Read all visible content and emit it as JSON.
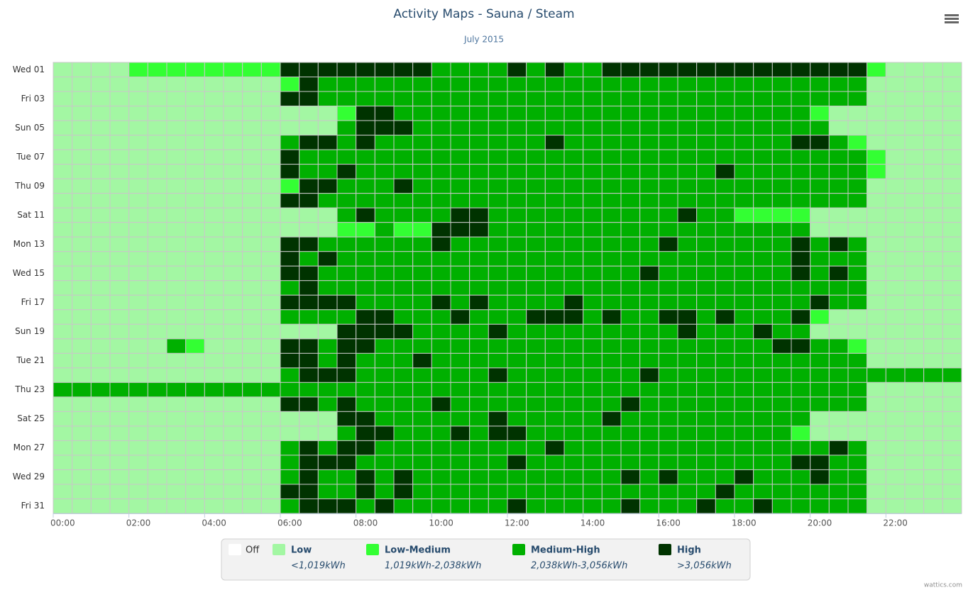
{
  "chart_data": {
    "type": "heatmap",
    "title": "Activity Maps - Sauna / Steam",
    "subtitle": "July 2015",
    "credit": "wattics.com",
    "legend": [
      {
        "name": "Off",
        "color": "#ffffff"
      },
      {
        "name": "Low",
        "range": "<1,019kWh",
        "color": "#a3f7a3"
      },
      {
        "name": "Low-Medium",
        "range": "1,019kWh-2,038kWh",
        "color": "#33ff33"
      },
      {
        "name": "Medium-High",
        "range": "2,038kWh-3,056kWh",
        "color": "#00b000"
      },
      {
        "name": "High",
        "range": ">3,056kWh",
        "color": "#003300"
      }
    ],
    "categories": [
      "00:00",
      null,
      null,
      null,
      "02:00",
      null,
      null,
      null,
      "04:00",
      null,
      null,
      null,
      "06:00",
      null,
      null,
      null,
      "08:00",
      null,
      null,
      null,
      "10:00",
      null,
      null,
      null,
      "12:00",
      null,
      null,
      null,
      "14:00",
      null,
      null,
      null,
      "16:00",
      null,
      null,
      null,
      "18:00",
      null,
      null,
      null,
      "20:00",
      null,
      null,
      null,
      "22:00",
      null,
      null,
      null
    ],
    "y_categories": [
      "Wed 01",
      null,
      "Fri 03",
      null,
      "Sun 05",
      null,
      "Tue 07",
      null,
      "Thu 09",
      null,
      "Sat 11",
      null,
      "Mon 13",
      null,
      "Wed 15",
      null,
      "Fri 17",
      null,
      "Sun 19",
      null,
      "Tue 21",
      null,
      "Thu 23",
      null,
      "Sat 25",
      null,
      "Mon 27",
      null,
      "Wed 29",
      null,
      "Fri 31"
    ],
    "values": [
      [
        1,
        1,
        1,
        1,
        2,
        2,
        2,
        2,
        2,
        2,
        2,
        2,
        4,
        4,
        4,
        4,
        4,
        4,
        4,
        4,
        3,
        3,
        3,
        3,
        4,
        3,
        4,
        3,
        3,
        4,
        4,
        4,
        4,
        4,
        4,
        4,
        4,
        4,
        4,
        4,
        4,
        4,
        4,
        2,
        1,
        1,
        1,
        1
      ],
      [
        1,
        1,
        1,
        1,
        1,
        1,
        1,
        1,
        1,
        1,
        1,
        1,
        2,
        4,
        3,
        3,
        3,
        3,
        3,
        3,
        3,
        3,
        3,
        3,
        3,
        3,
        3,
        3,
        3,
        3,
        3,
        3,
        3,
        3,
        3,
        3,
        3,
        3,
        3,
        3,
        3,
        3,
        3,
        1,
        1,
        1,
        1,
        1
      ],
      [
        1,
        1,
        1,
        1,
        1,
        1,
        1,
        1,
        1,
        1,
        1,
        1,
        4,
        4,
        3,
        3,
        3,
        3,
        3,
        3,
        3,
        3,
        3,
        3,
        3,
        3,
        3,
        3,
        3,
        3,
        3,
        3,
        3,
        3,
        3,
        3,
        3,
        3,
        3,
        3,
        3,
        3,
        3,
        1,
        1,
        1,
        1,
        1
      ],
      [
        1,
        1,
        1,
        1,
        1,
        1,
        1,
        1,
        1,
        1,
        1,
        1,
        1,
        1,
        1,
        2,
        4,
        4,
        3,
        3,
        3,
        3,
        3,
        3,
        3,
        3,
        3,
        3,
        3,
        3,
        3,
        3,
        3,
        3,
        3,
        3,
        3,
        3,
        3,
        3,
        2,
        1,
        1,
        1,
        1,
        1,
        1,
        1
      ],
      [
        1,
        1,
        1,
        1,
        1,
        1,
        1,
        1,
        1,
        1,
        1,
        1,
        1,
        1,
        1,
        3,
        4,
        4,
        4,
        3,
        3,
        3,
        3,
        3,
        3,
        3,
        3,
        3,
        3,
        3,
        3,
        3,
        3,
        3,
        3,
        3,
        3,
        3,
        3,
        3,
        3,
        1,
        1,
        1,
        1,
        1,
        1,
        1
      ],
      [
        1,
        1,
        1,
        1,
        1,
        1,
        1,
        1,
        1,
        1,
        1,
        1,
        3,
        4,
        4,
        3,
        4,
        3,
        3,
        3,
        3,
        3,
        3,
        3,
        3,
        3,
        4,
        3,
        3,
        3,
        3,
        3,
        3,
        3,
        3,
        3,
        3,
        3,
        3,
        4,
        4,
        3,
        2,
        1,
        1,
        1,
        1,
        1
      ],
      [
        1,
        1,
        1,
        1,
        1,
        1,
        1,
        1,
        1,
        1,
        1,
        1,
        4,
        3,
        3,
        3,
        3,
        3,
        3,
        3,
        3,
        3,
        3,
        3,
        3,
        3,
        3,
        3,
        3,
        3,
        3,
        3,
        3,
        3,
        3,
        3,
        3,
        3,
        3,
        3,
        3,
        3,
        3,
        2,
        1,
        1,
        1,
        1
      ],
      [
        1,
        1,
        1,
        1,
        1,
        1,
        1,
        1,
        1,
        1,
        1,
        1,
        4,
        3,
        3,
        4,
        3,
        3,
        3,
        3,
        3,
        3,
        3,
        3,
        3,
        3,
        3,
        3,
        3,
        3,
        3,
        3,
        3,
        3,
        3,
        4,
        3,
        3,
        3,
        3,
        3,
        3,
        3,
        2,
        1,
        1,
        1,
        1
      ],
      [
        1,
        1,
        1,
        1,
        1,
        1,
        1,
        1,
        1,
        1,
        1,
        1,
        2,
        4,
        4,
        3,
        3,
        3,
        4,
        3,
        3,
        3,
        3,
        3,
        3,
        3,
        3,
        3,
        3,
        3,
        3,
        3,
        3,
        3,
        3,
        3,
        3,
        3,
        3,
        3,
        3,
        3,
        3,
        1,
        1,
        1,
        1,
        1
      ],
      [
        1,
        1,
        1,
        1,
        1,
        1,
        1,
        1,
        1,
        1,
        1,
        1,
        4,
        4,
        3,
        3,
        3,
        3,
        3,
        3,
        3,
        3,
        3,
        3,
        3,
        3,
        3,
        3,
        3,
        3,
        3,
        3,
        3,
        3,
        3,
        3,
        3,
        3,
        3,
        3,
        3,
        3,
        3,
        1,
        1,
        1,
        1,
        1
      ],
      [
        1,
        1,
        1,
        1,
        1,
        1,
        1,
        1,
        1,
        1,
        1,
        1,
        1,
        1,
        1,
        3,
        4,
        3,
        3,
        3,
        3,
        4,
        4,
        3,
        3,
        3,
        3,
        3,
        3,
        3,
        3,
        3,
        3,
        4,
        3,
        3,
        2,
        2,
        2,
        2,
        1,
        1,
        1,
        1,
        1,
        1,
        1,
        1
      ],
      [
        1,
        1,
        1,
        1,
        1,
        1,
        1,
        1,
        1,
        1,
        1,
        1,
        1,
        1,
        1,
        2,
        2,
        3,
        2,
        2,
        4,
        4,
        4,
        3,
        3,
        3,
        3,
        3,
        3,
        3,
        3,
        3,
        3,
        3,
        3,
        3,
        3,
        3,
        3,
        3,
        1,
        1,
        1,
        1,
        1,
        1,
        1,
        1
      ],
      [
        1,
        1,
        1,
        1,
        1,
        1,
        1,
        1,
        1,
        1,
        1,
        1,
        4,
        4,
        3,
        3,
        3,
        3,
        3,
        3,
        4,
        3,
        3,
        3,
        3,
        3,
        3,
        3,
        3,
        3,
        3,
        3,
        4,
        3,
        3,
        3,
        3,
        3,
        3,
        4,
        3,
        4,
        3,
        1,
        1,
        1,
        1,
        1
      ],
      [
        1,
        1,
        1,
        1,
        1,
        1,
        1,
        1,
        1,
        1,
        1,
        1,
        4,
        3,
        4,
        3,
        3,
        3,
        3,
        3,
        3,
        3,
        3,
        3,
        3,
        3,
        3,
        3,
        3,
        3,
        3,
        3,
        3,
        3,
        3,
        3,
        3,
        3,
        3,
        4,
        3,
        3,
        3,
        1,
        1,
        1,
        1,
        1
      ],
      [
        1,
        1,
        1,
        1,
        1,
        1,
        1,
        1,
        1,
        1,
        1,
        1,
        4,
        4,
        3,
        3,
        3,
        3,
        3,
        3,
        3,
        3,
        3,
        3,
        3,
        3,
        3,
        3,
        3,
        3,
        3,
        4,
        3,
        3,
        3,
        3,
        3,
        3,
        3,
        4,
        3,
        4,
        3,
        1,
        1,
        1,
        1,
        1
      ],
      [
        1,
        1,
        1,
        1,
        1,
        1,
        1,
        1,
        1,
        1,
        1,
        1,
        3,
        4,
        3,
        3,
        3,
        3,
        3,
        3,
        3,
        3,
        3,
        3,
        3,
        3,
        3,
        3,
        3,
        3,
        3,
        3,
        3,
        3,
        3,
        3,
        3,
        3,
        3,
        3,
        3,
        3,
        3,
        1,
        1,
        1,
        1,
        1
      ],
      [
        1,
        1,
        1,
        1,
        1,
        1,
        1,
        1,
        1,
        1,
        1,
        1,
        4,
        4,
        4,
        4,
        3,
        3,
        3,
        3,
        4,
        3,
        4,
        3,
        3,
        3,
        3,
        4,
        3,
        3,
        3,
        3,
        3,
        3,
        3,
        3,
        3,
        3,
        3,
        3,
        4,
        3,
        3,
        1,
        1,
        1,
        1,
        1
      ],
      [
        1,
        1,
        1,
        1,
        1,
        1,
        1,
        1,
        1,
        1,
        1,
        1,
        3,
        3,
        3,
        3,
        4,
        4,
        3,
        3,
        3,
        4,
        3,
        3,
        3,
        4,
        4,
        4,
        3,
        4,
        3,
        3,
        4,
        4,
        3,
        4,
        3,
        3,
        3,
        4,
        2,
        1,
        1,
        1,
        1,
        1,
        1,
        1
      ],
      [
        1,
        1,
        1,
        1,
        1,
        1,
        1,
        1,
        1,
        1,
        1,
        1,
        1,
        1,
        1,
        4,
        4,
        4,
        4,
        3,
        3,
        3,
        3,
        4,
        3,
        3,
        3,
        3,
        3,
        3,
        3,
        3,
        3,
        4,
        3,
        3,
        3,
        4,
        3,
        3,
        1,
        1,
        1,
        1,
        1,
        1,
        1,
        1
      ],
      [
        1,
        1,
        1,
        1,
        1,
        1,
        3,
        2,
        1,
        1,
        1,
        1,
        4,
        4,
        3,
        4,
        4,
        3,
        3,
        3,
        3,
        3,
        3,
        3,
        3,
        3,
        3,
        3,
        3,
        3,
        3,
        3,
        3,
        3,
        3,
        3,
        3,
        3,
        4,
        4,
        3,
        3,
        2,
        1,
        1,
        1,
        1,
        1
      ],
      [
        1,
        1,
        1,
        1,
        1,
        1,
        1,
        1,
        1,
        1,
        1,
        1,
        4,
        4,
        3,
        4,
        3,
        3,
        3,
        4,
        3,
        3,
        3,
        3,
        3,
        3,
        3,
        3,
        3,
        3,
        3,
        3,
        3,
        3,
        3,
        3,
        3,
        3,
        3,
        3,
        3,
        3,
        3,
        1,
        1,
        1,
        1,
        1
      ],
      [
        1,
        1,
        1,
        1,
        1,
        1,
        1,
        1,
        1,
        1,
        1,
        1,
        3,
        4,
        4,
        4,
        3,
        3,
        3,
        3,
        3,
        3,
        3,
        4,
        3,
        3,
        3,
        3,
        3,
        3,
        3,
        4,
        3,
        3,
        3,
        3,
        3,
        3,
        3,
        3,
        3,
        3,
        3,
        3,
        3,
        3,
        3,
        3
      ],
      [
        3,
        3,
        3,
        3,
        3,
        3,
        3,
        3,
        3,
        3,
        3,
        3,
        3,
        3,
        3,
        3,
        3,
        3,
        3,
        3,
        3,
        3,
        3,
        3,
        3,
        3,
        3,
        3,
        3,
        3,
        3,
        3,
        3,
        3,
        3,
        3,
        3,
        3,
        3,
        3,
        3,
        3,
        3,
        1,
        1,
        1,
        1,
        1
      ],
      [
        1,
        1,
        1,
        1,
        1,
        1,
        1,
        1,
        1,
        1,
        1,
        1,
        4,
        4,
        3,
        4,
        3,
        3,
        3,
        3,
        4,
        3,
        3,
        3,
        3,
        3,
        3,
        3,
        3,
        3,
        4,
        3,
        3,
        3,
        3,
        3,
        3,
        3,
        3,
        3,
        3,
        3,
        3,
        1,
        1,
        1,
        1,
        1
      ],
      [
        1,
        1,
        1,
        1,
        1,
        1,
        1,
        1,
        1,
        1,
        1,
        1,
        1,
        1,
        1,
        4,
        4,
        3,
        3,
        3,
        3,
        3,
        3,
        4,
        3,
        3,
        3,
        3,
        3,
        4,
        3,
        3,
        3,
        3,
        3,
        3,
        3,
        3,
        3,
        3,
        1,
        1,
        1,
        1,
        1,
        1,
        1,
        1
      ],
      [
        1,
        1,
        1,
        1,
        1,
        1,
        1,
        1,
        1,
        1,
        1,
        1,
        1,
        1,
        1,
        3,
        4,
        4,
        3,
        3,
        3,
        4,
        3,
        4,
        4,
        3,
        3,
        3,
        3,
        3,
        3,
        3,
        3,
        3,
        3,
        3,
        3,
        3,
        3,
        2,
        1,
        1,
        1,
        1,
        1,
        1,
        1,
        1
      ],
      [
        1,
        1,
        1,
        1,
        1,
        1,
        1,
        1,
        1,
        1,
        1,
        1,
        3,
        4,
        3,
        4,
        4,
        3,
        3,
        3,
        3,
        3,
        3,
        3,
        3,
        3,
        4,
        3,
        3,
        3,
        3,
        3,
        3,
        3,
        3,
        3,
        3,
        3,
        3,
        3,
        3,
        4,
        3,
        1,
        1,
        1,
        1,
        1
      ],
      [
        1,
        1,
        1,
        1,
        1,
        1,
        1,
        1,
        1,
        1,
        1,
        1,
        3,
        4,
        4,
        4,
        3,
        3,
        3,
        3,
        3,
        3,
        3,
        3,
        4,
        3,
        3,
        3,
        3,
        3,
        3,
        3,
        3,
        3,
        3,
        3,
        3,
        3,
        3,
        4,
        4,
        3,
        3,
        1,
        1,
        1,
        1,
        1
      ],
      [
        1,
        1,
        1,
        1,
        1,
        1,
        1,
        1,
        1,
        1,
        1,
        1,
        3,
        4,
        3,
        3,
        4,
        3,
        4,
        3,
        3,
        3,
        3,
        3,
        3,
        3,
        3,
        3,
        3,
        3,
        4,
        3,
        4,
        3,
        3,
        3,
        4,
        3,
        3,
        3,
        4,
        3,
        3,
        1,
        1,
        1,
        1,
        1
      ],
      [
        1,
        1,
        1,
        1,
        1,
        1,
        1,
        1,
        1,
        1,
        1,
        1,
        4,
        4,
        3,
        3,
        4,
        3,
        4,
        3,
        3,
        3,
        3,
        3,
        3,
        3,
        3,
        3,
        3,
        3,
        3,
        3,
        3,
        3,
        3,
        4,
        3,
        3,
        3,
        3,
        3,
        3,
        3,
        1,
        1,
        1,
        1,
        1
      ],
      [
        1,
        1,
        1,
        1,
        1,
        1,
        1,
        1,
        1,
        1,
        1,
        1,
        3,
        4,
        4,
        4,
        3,
        4,
        3,
        3,
        3,
        3,
        3,
        3,
        4,
        3,
        3,
        3,
        3,
        3,
        4,
        3,
        3,
        3,
        4,
        3,
        3,
        4,
        3,
        3,
        3,
        3,
        3,
        1,
        1,
        1,
        1,
        1
      ]
    ]
  }
}
